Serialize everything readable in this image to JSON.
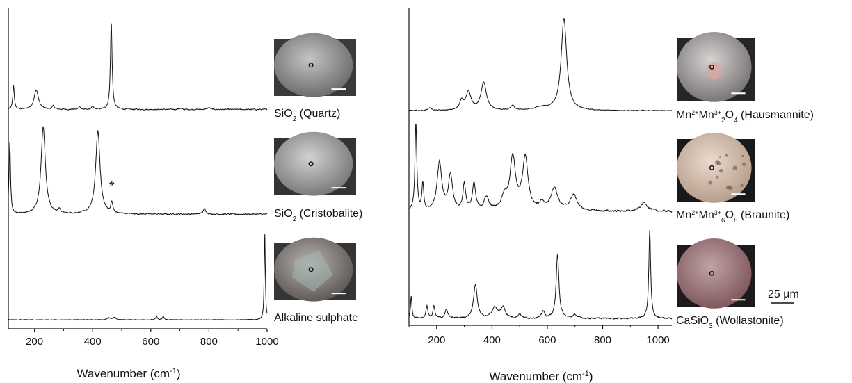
{
  "chart_data": [
    {
      "type": "line",
      "panel": "left",
      "xlabel_main": "Wavenumber (cm",
      "xlabel_sup": "-1",
      "xlabel_close": ")",
      "xlim": [
        110,
        1000
      ],
      "xticks": [
        200,
        400,
        600,
        800,
        1000
      ],
      "y_axis_visible": true,
      "y_ticks_shown": false,
      "series": [
        {
          "name": "SiO2 (Quartz)",
          "label_parts": [
            {
              "text": "SiO",
              "style": "normal"
            },
            {
              "text": "2",
              "style": "sub"
            },
            {
              "text": " (Quartz)",
              "style": "normal"
            }
          ],
          "baseline": 0.02,
          "noise": 0.012,
          "peaks": [
            {
              "x": 128,
              "h": 0.27,
              "w": 3
            },
            {
              "x": 206,
              "h": 0.22,
              "w": 9
            },
            {
              "x": 265,
              "h": 0.04,
              "w": 4
            },
            {
              "x": 355,
              "h": 0.04,
              "w": 3
            },
            {
              "x": 400,
              "h": 0.03,
              "w": 4
            },
            {
              "x": 464,
              "h": 1.0,
              "w": 3.5
            },
            {
              "x": 700,
              "h": 0.01,
              "w": 8
            },
            {
              "x": 800,
              "h": 0.02,
              "w": 6
            }
          ]
        },
        {
          "name": "SiO2 (Cristobalite)",
          "label_parts": [
            {
              "text": "SiO",
              "style": "normal"
            },
            {
              "text": "2",
              "style": "sub"
            },
            {
              "text": " (Cristobalite)",
              "style": "normal"
            }
          ],
          "baseline": 0.03,
          "noise": 0.012,
          "peaks": [
            {
              "x": 115,
              "h": 0.82,
              "w": 3
            },
            {
              "x": 230,
              "h": 1.0,
              "w": 9
            },
            {
              "x": 285,
              "h": 0.05,
              "w": 4
            },
            {
              "x": 418,
              "h": 0.95,
              "w": 9
            },
            {
              "x": 466,
              "h": 0.12,
              "w": 4
            },
            {
              "x": 785,
              "h": 0.06,
              "w": 6
            }
          ],
          "annotation": {
            "text": "*",
            "x": 466
          }
        },
        {
          "name": "Alkaline sulphate",
          "label_parts": [
            {
              "text": "Alkaline sulphate",
              "style": "normal"
            }
          ],
          "baseline": 0.015,
          "noise": 0.006,
          "peaks": [
            {
              "x": 455,
              "h": 0.025,
              "w": 6
            },
            {
              "x": 475,
              "h": 0.025,
              "w": 6
            },
            {
              "x": 620,
              "h": 0.04,
              "w": 3
            },
            {
              "x": 643,
              "h": 0.04,
              "w": 3
            },
            {
              "x": 992,
              "h": 1.0,
              "w": 2.2
            }
          ]
        }
      ]
    },
    {
      "type": "line",
      "panel": "right",
      "xlabel_main": "Wavenumber (cm",
      "xlabel_sup": "-1",
      "xlabel_close": ")",
      "xlim": [
        100,
        1050
      ],
      "xticks": [
        200,
        400,
        600,
        800,
        1000
      ],
      "y_axis_visible": true,
      "y_ticks_shown": false,
      "scale_bar_label": "25 µm",
      "series": [
        {
          "name": "Mn2+Mn3+2O4 (Hausmannite)",
          "label_parts": [
            {
              "text": "Mn",
              "style": "normal"
            },
            {
              "text": "2+",
              "style": "sup"
            },
            {
              "text": "Mn",
              "style": "normal"
            },
            {
              "text": "3+",
              "style": "sup"
            },
            {
              "text": "2",
              "style": "sub"
            },
            {
              "text": "O",
              "style": "normal"
            },
            {
              "text": "4",
              "style": "sub"
            },
            {
              "text": " (Hausmannite)",
              "style": "normal"
            }
          ],
          "baseline": 0.02,
          "noise": 0.008,
          "peaks": [
            {
              "x": 175,
              "h": 0.03,
              "w": 8
            },
            {
              "x": 290,
              "h": 0.1,
              "w": 8
            },
            {
              "x": 315,
              "h": 0.2,
              "w": 11
            },
            {
              "x": 370,
              "h": 0.3,
              "w": 12
            },
            {
              "x": 475,
              "h": 0.05,
              "w": 8
            },
            {
              "x": 580,
              "h": 0.03,
              "w": 30
            },
            {
              "x": 660,
              "h": 1.0,
              "w": 12
            }
          ]
        },
        {
          "name": "Mn2+Mn3+6O8 (Braunite)",
          "label_parts": [
            {
              "text": "Mn",
              "style": "normal"
            },
            {
              "text": "2+",
              "style": "sup"
            },
            {
              "text": "Mn",
              "style": "normal"
            },
            {
              "text": "3+",
              "style": "sup"
            },
            {
              "text": "6",
              "style": "sub"
            },
            {
              "text": "O",
              "style": "normal"
            },
            {
              "text": "8",
              "style": "sub"
            },
            {
              "text": " (Braunite)",
              "style": "normal"
            }
          ],
          "baseline": 0.03,
          "noise": 0.02,
          "peaks": [
            {
              "x": 125,
              "h": 1.0,
              "w": 4
            },
            {
              "x": 150,
              "h": 0.3,
              "w": 4
            },
            {
              "x": 210,
              "h": 0.55,
              "w": 10
            },
            {
              "x": 250,
              "h": 0.4,
              "w": 9
            },
            {
              "x": 300,
              "h": 0.3,
              "w": 6
            },
            {
              "x": 335,
              "h": 0.3,
              "w": 7
            },
            {
              "x": 380,
              "h": 0.15,
              "w": 10
            },
            {
              "x": 445,
              "h": 0.15,
              "w": 12
            },
            {
              "x": 475,
              "h": 0.6,
              "w": 12
            },
            {
              "x": 520,
              "h": 0.6,
              "w": 12
            },
            {
              "x": 580,
              "h": 0.08,
              "w": 10
            },
            {
              "x": 625,
              "h": 0.26,
              "w": 15
            },
            {
              "x": 695,
              "h": 0.18,
              "w": 15
            },
            {
              "x": 950,
              "h": 0.1,
              "w": 15
            }
          ]
        },
        {
          "name": "CaSiO3 (Wollastonite)",
          "label_parts": [
            {
              "text": "CaSiO",
              "style": "normal"
            },
            {
              "text": "3",
              "style": "sub"
            },
            {
              "text": " (Wollastonite)",
              "style": "normal"
            }
          ],
          "baseline": 0.03,
          "noise": 0.015,
          "peaks": [
            {
              "x": 108,
              "h": 0.25,
              "w": 3
            },
            {
              "x": 165,
              "h": 0.14,
              "w": 4
            },
            {
              "x": 190,
              "h": 0.14,
              "w": 4
            },
            {
              "x": 235,
              "h": 0.1,
              "w": 6
            },
            {
              "x": 340,
              "h": 0.38,
              "w": 8
            },
            {
              "x": 410,
              "h": 0.12,
              "w": 12
            },
            {
              "x": 440,
              "h": 0.12,
              "w": 10
            },
            {
              "x": 500,
              "h": 0.05,
              "w": 6
            },
            {
              "x": 585,
              "h": 0.08,
              "w": 6
            },
            {
              "x": 637,
              "h": 0.72,
              "w": 6
            },
            {
              "x": 700,
              "h": 0.04,
              "w": 8
            },
            {
              "x": 970,
              "h": 1.0,
              "w": 4
            }
          ]
        }
      ]
    }
  ]
}
